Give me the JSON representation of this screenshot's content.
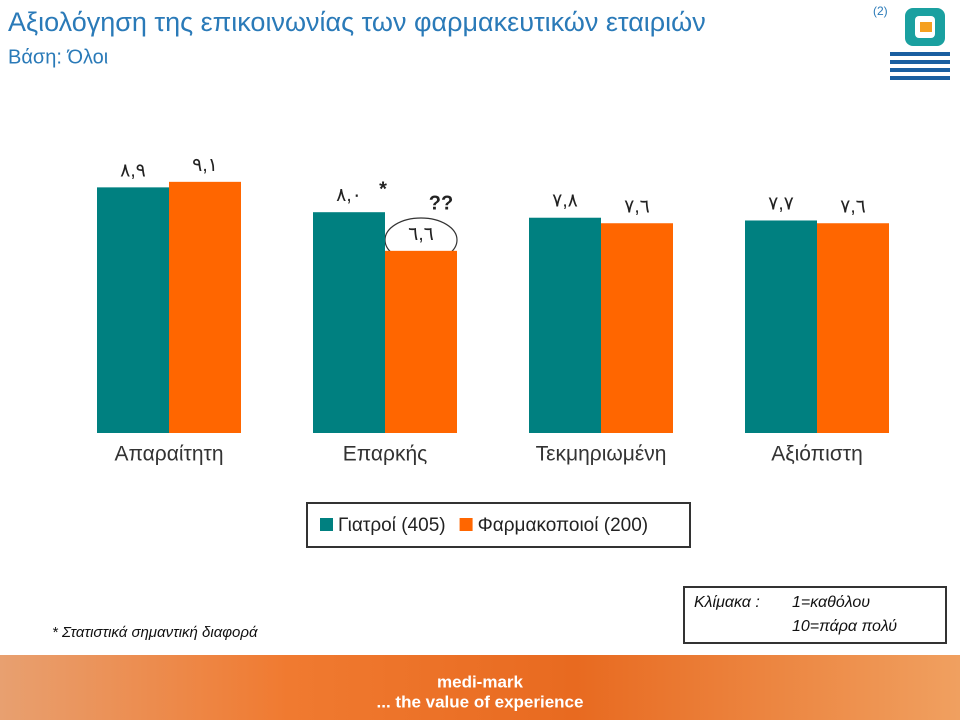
{
  "chart_data": {
    "type": "bar",
    "title": "Αξιολόγηση της επικοινωνίας των φαρμακευτικών εταιριών",
    "title_note": "(2)",
    "subtitle": "Βάση: Όλοι",
    "categories": [
      "Απαραίτητη",
      "Επαρκής",
      "Τεκμηριωμένη",
      "Αξιόπιστη"
    ],
    "series": [
      {
        "name": "Γιατροί (405)",
        "color": "#008080",
        "values": [
          8.9,
          8.0,
          7.8,
          7.7
        ],
        "value_labels": [
          "٨,٩",
          "٨,٠",
          "٧,٨",
          "٧,٧"
        ]
      },
      {
        "name": "Φαρμακοποιοί (200)",
        "color": "#ff6600",
        "values": [
          9.1,
          6.6,
          7.6,
          7.6
        ],
        "value_labels": [
          "٩,١",
          "٦,٦",
          "٧,٦",
          "٧,٦"
        ]
      }
    ],
    "ylim": [
      0,
      10
    ],
    "annotations": [
      "*",
      "??"
    ],
    "footnote": "* Στατιστικά σημαντική διαφορά",
    "scale_note": {
      "label": "Κλίμακα :",
      "lines": [
        "1=καθόλου",
        "10=πάρα πολύ"
      ]
    },
    "footer": [
      "medi-mark",
      "... the value of experience"
    ]
  }
}
